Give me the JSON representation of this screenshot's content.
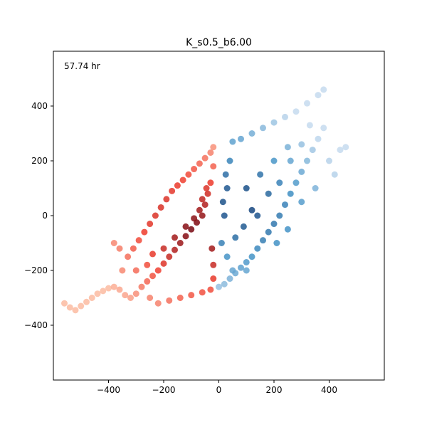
{
  "chart_data": {
    "type": "scatter",
    "title": "K_s0.5_b6.00",
    "annotation": "57.74 hr",
    "xlabel": "",
    "ylabel": "",
    "xlim": [
      -600,
      600
    ],
    "ylim": [
      -600,
      600
    ],
    "x_ticks": [
      -400,
      -200,
      0,
      200,
      400
    ],
    "y_ticks": [
      -400,
      -200,
      0,
      200,
      400
    ],
    "x_tick_labels": [
      "−400",
      "−200",
      "0",
      "200",
      "400"
    ],
    "y_tick_labels": [
      "−400",
      "−200",
      "0",
      "200",
      "400"
    ],
    "grid": false,
    "legend": "none",
    "colormaps": {
      "negative_x": "Reds",
      "positive_x": "Blues"
    },
    "colors": {
      "red_dark": "#67000d",
      "red_mid": "#ef3b2c",
      "red_light": "#fcbba1",
      "blue_dark": "#08306b",
      "blue_mid": "#4292c6",
      "blue_light": "#c6dbef"
    },
    "series": [
      {
        "side": "negative_x",
        "color": "#cb181d",
        "points": [
          [
            -560,
            -320
          ],
          [
            -540,
            -335
          ],
          [
            -520,
            -345
          ],
          [
            -500,
            -330
          ],
          [
            -480,
            -315
          ],
          [
            -460,
            -300
          ],
          [
            -440,
            -285
          ],
          [
            -420,
            -275
          ],
          [
            -400,
            -265
          ],
          [
            -380,
            -260
          ],
          [
            -360,
            -270
          ],
          [
            -340,
            -290
          ],
          [
            -320,
            -300
          ],
          [
            -300,
            -285
          ],
          [
            -280,
            -260
          ],
          [
            -260,
            -240
          ],
          [
            -240,
            -220
          ],
          [
            -220,
            -200
          ],
          [
            -200,
            -175
          ],
          [
            -180,
            -150
          ],
          [
            -160,
            -125
          ],
          [
            -140,
            -100
          ],
          [
            -120,
            -75
          ],
          [
            -100,
            -50
          ],
          [
            -80,
            -25
          ],
          [
            -60,
            0
          ],
          [
            -50,
            40
          ],
          [
            -40,
            80
          ],
          [
            -30,
            120
          ],
          [
            -20,
            180
          ],
          [
            -350,
            -200
          ],
          [
            -330,
            -150
          ],
          [
            -310,
            -120
          ],
          [
            -290,
            -90
          ],
          [
            -270,
            -60
          ],
          [
            -250,
            -30
          ],
          [
            -230,
            0
          ],
          [
            -210,
            30
          ],
          [
            -190,
            60
          ],
          [
            -170,
            90
          ],
          [
            -150,
            110
          ],
          [
            -130,
            130
          ],
          [
            -110,
            150
          ],
          [
            -90,
            170
          ],
          [
            -70,
            190
          ],
          [
            -50,
            210
          ],
          [
            -30,
            230
          ],
          [
            -20,
            250
          ],
          [
            -380,
            -100
          ],
          [
            -360,
            -120
          ],
          [
            -250,
            -300
          ],
          [
            -220,
            -320
          ],
          [
            -180,
            -310
          ],
          [
            -140,
            -300
          ],
          [
            -100,
            -290
          ],
          [
            -60,
            -280
          ],
          [
            -30,
            -270
          ],
          [
            -20,
            -230
          ],
          [
            -20,
            -180
          ],
          [
            -25,
            -120
          ],
          [
            -300,
            -200
          ],
          [
            -260,
            -180
          ],
          [
            -240,
            -140
          ],
          [
            -200,
            -120
          ],
          [
            -160,
            -80
          ],
          [
            -120,
            -40
          ],
          [
            -90,
            -10
          ],
          [
            -70,
            20
          ],
          [
            -60,
            60
          ],
          [
            -45,
            100
          ]
        ]
      },
      {
        "side": "positive_x",
        "color": "#2171b5",
        "points": [
          [
            0,
            -260
          ],
          [
            20,
            -250
          ],
          [
            40,
            -230
          ],
          [
            60,
            -210
          ],
          [
            80,
            -190
          ],
          [
            100,
            -170
          ],
          [
            120,
            -150
          ],
          [
            140,
            -120
          ],
          [
            160,
            -90
          ],
          [
            180,
            -60
          ],
          [
            200,
            -30
          ],
          [
            220,
            0
          ],
          [
            240,
            40
          ],
          [
            260,
            80
          ],
          [
            280,
            120
          ],
          [
            300,
            160
          ],
          [
            320,
            200
          ],
          [
            340,
            240
          ],
          [
            360,
            280
          ],
          [
            380,
            320
          ],
          [
            10,
            -100
          ],
          [
            20,
            0
          ],
          [
            30,
            100
          ],
          [
            40,
            200
          ],
          [
            50,
            270
          ],
          [
            80,
            280
          ],
          [
            120,
            300
          ],
          [
            160,
            320
          ],
          [
            200,
            340
          ],
          [
            240,
            360
          ],
          [
            280,
            380
          ],
          [
            320,
            410
          ],
          [
            360,
            440
          ],
          [
            380,
            460
          ],
          [
            100,
            100
          ],
          [
            150,
            150
          ],
          [
            200,
            200
          ],
          [
            250,
            250
          ],
          [
            120,
            20
          ],
          [
            180,
            80
          ],
          [
            60,
            -80
          ],
          [
            90,
            -40
          ],
          [
            140,
            0
          ],
          [
            220,
            120
          ],
          [
            260,
            200
          ],
          [
            300,
            260
          ],
          [
            330,
            330
          ],
          [
            400,
            200
          ],
          [
            420,
            150
          ],
          [
            440,
            240
          ],
          [
            460,
            250
          ],
          [
            350,
            100
          ],
          [
            300,
            50
          ],
          [
            250,
            -50
          ],
          [
            210,
            -100
          ],
          [
            100,
            -200
          ],
          [
            50,
            -200
          ],
          [
            30,
            -150
          ],
          [
            15,
            50
          ],
          [
            25,
            150
          ]
        ]
      }
    ]
  }
}
